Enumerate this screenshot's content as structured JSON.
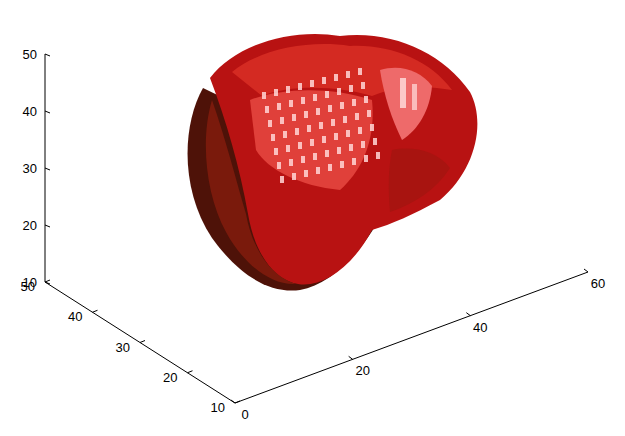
{
  "chart_data": {
    "type": "isosurface",
    "color": "#b81212",
    "xlim": [
      0,
      60
    ],
    "xticks": [
      0,
      20,
      40,
      60
    ],
    "ylim": [
      10,
      50
    ],
    "yticks": [
      10,
      20,
      30,
      40,
      50
    ],
    "zlim": [
      10,
      50
    ],
    "zticks": [
      10,
      20,
      30,
      40,
      50
    ]
  }
}
